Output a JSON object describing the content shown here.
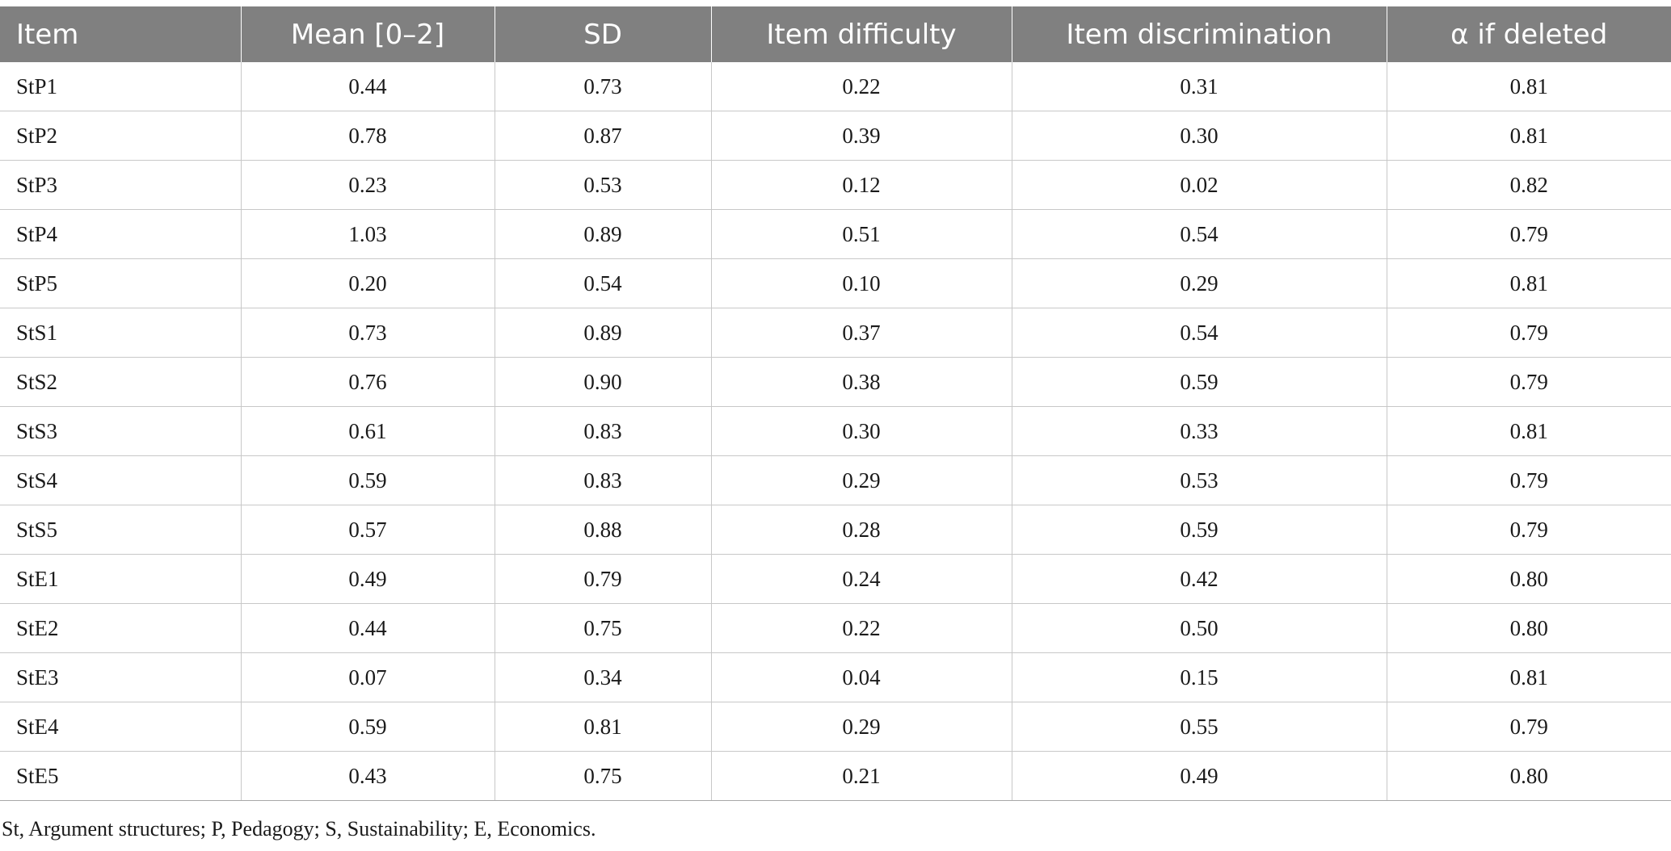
{
  "table": {
    "headers": [
      "Item",
      "Mean [0–2]",
      "SD",
      "Item difficulty",
      "Item discrimination",
      "α if deleted"
    ],
    "rows": [
      [
        "StP1",
        "0.44",
        "0.73",
        "0.22",
        "0.31",
        "0.81"
      ],
      [
        "StP2",
        "0.78",
        "0.87",
        "0.39",
        "0.30",
        "0.81"
      ],
      [
        "StP3",
        "0.23",
        "0.53",
        "0.12",
        "0.02",
        "0.82"
      ],
      [
        "StP4",
        "1.03",
        "0.89",
        "0.51",
        "0.54",
        "0.79"
      ],
      [
        "StP5",
        "0.20",
        "0.54",
        "0.10",
        "0.29",
        "0.81"
      ],
      [
        "StS1",
        "0.73",
        "0.89",
        "0.37",
        "0.54",
        "0.79"
      ],
      [
        "StS2",
        "0.76",
        "0.90",
        "0.38",
        "0.59",
        "0.79"
      ],
      [
        "StS3",
        "0.61",
        "0.83",
        "0.30",
        "0.33",
        "0.81"
      ],
      [
        "StS4",
        "0.59",
        "0.83",
        "0.29",
        "0.53",
        "0.79"
      ],
      [
        "StS5",
        "0.57",
        "0.88",
        "0.28",
        "0.59",
        "0.79"
      ],
      [
        "StE1",
        "0.49",
        "0.79",
        "0.24",
        "0.42",
        "0.80"
      ],
      [
        "StE2",
        "0.44",
        "0.75",
        "0.22",
        "0.50",
        "0.80"
      ],
      [
        "StE3",
        "0.07",
        "0.34",
        "0.04",
        "0.15",
        "0.81"
      ],
      [
        "StE4",
        "0.59",
        "0.81",
        "0.29",
        "0.55",
        "0.79"
      ],
      [
        "StE5",
        "0.43",
        "0.75",
        "0.21",
        "0.49",
        "0.80"
      ]
    ]
  },
  "footnote": "St, Argument structures; P, Pedagogy; S, Sustainability; E, Economics.",
  "colors": {
    "header_bg": "#808080",
    "header_text": "#ffffff",
    "grid": "#c8c8c8"
  }
}
